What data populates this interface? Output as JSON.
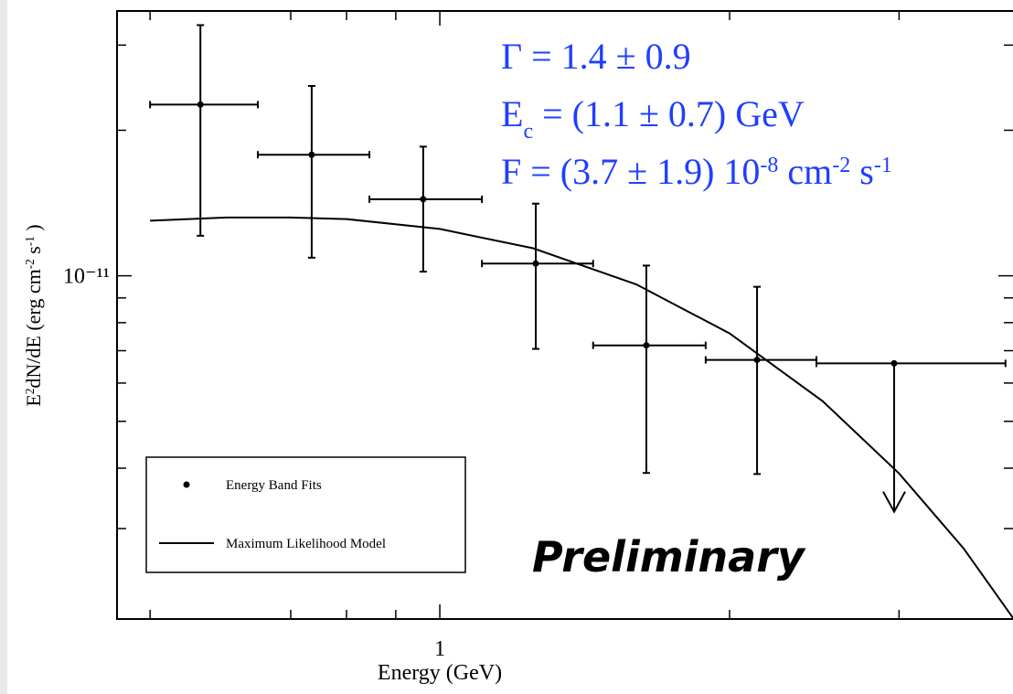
{
  "chart_data": {
    "type": "scatter",
    "log_x": true,
    "log_y": true,
    "xlabel": "Energy (GeV)",
    "ylabel": [
      {
        "text": "E"
      },
      {
        "text": "2",
        "shift": "super"
      },
      {
        "text": "dN/dE (erg cm"
      },
      {
        "text": "-2",
        "shift": "super"
      },
      {
        "text": " s"
      },
      {
        "text": "-1",
        "shift": "super"
      },
      {
        "text": " )"
      }
    ],
    "xlim": [
      0.462,
      3.94
    ],
    "ylim": [
      1.95e-12,
      3.53e-11
    ],
    "xticks": [
      1
    ],
    "xminor_ticks": [
      0.5,
      0.7,
      0.8,
      0.9,
      2,
      3
    ],
    "yticks": [
      {
        "value": 1e-11,
        "label": "10⁻¹¹"
      }
    ],
    "yminor_ticks": [
      3e-12,
      4e-12,
      5e-12,
      6e-12,
      7e-12,
      8e-12,
      9e-12,
      2e-11,
      3e-11
    ],
    "series": [
      {
        "name": "Energy Band Fits",
        "type": "errorbar",
        "color": "#000000",
        "x": [
          0.564,
          0.736,
          0.961,
          1.258,
          1.639,
          2.136,
          2.965
        ],
        "values": [
          2.26e-11,
          1.78e-11,
          1.44e-11,
          1.06e-11,
          7.18e-12,
          6.7e-12,
          6.59e-12
        ],
        "x_low": [
          0.5,
          0.647,
          0.845,
          1.106,
          1.443,
          1.889,
          2.462
        ],
        "x_high": [
          0.647,
          0.845,
          1.106,
          1.443,
          1.889,
          2.462,
          3.87
        ],
        "y_low": [
          1.21e-11,
          1.09e-11,
          1.02e-11,
          7.06e-12,
          3.91e-12,
          3.89e-12,
          3.25e-12
        ],
        "y_high": [
          3.3e-11,
          2.47e-11,
          1.85e-11,
          1.41e-11,
          1.05e-11,
          9.49e-12,
          null
        ],
        "upper_limit": [
          false,
          false,
          false,
          false,
          false,
          false,
          true
        ]
      },
      {
        "name": "Maximum Likelihood Model",
        "type": "line",
        "color": "#000000",
        "x": [
          0.5,
          0.6,
          0.7,
          0.8,
          1.0,
          1.25,
          1.6,
          2.0,
          2.5,
          3.0,
          3.5,
          3.94
        ],
        "values": [
          1.3e-11,
          1.32e-11,
          1.32e-11,
          1.31e-11,
          1.25e-11,
          1.14e-11,
          9.6e-12,
          7.6e-12,
          5.5e-12,
          3.9e-12,
          2.73e-12,
          1.96e-12
        ]
      }
    ],
    "annotations": [
      [
        {
          "text": "Γ = 1.4 ± 0.9"
        }
      ],
      [
        {
          "text": "E"
        },
        {
          "text": "c",
          "shift": "sub"
        },
        {
          "text": " = (1.1 ± 0.7) GeV"
        }
      ],
      [
        {
          "text": "F = (3.7 ± 1.9) 10"
        },
        {
          "text": "-8",
          "shift": "super"
        },
        {
          "text": " cm"
        },
        {
          "text": "-2",
          "shift": "super"
        },
        {
          "text": " s"
        },
        {
          "text": "-1",
          "shift": "super"
        }
      ]
    ],
    "annotation_color": "#1f3fff",
    "watermark": "Preliminary",
    "watermark_color": "#ff3300"
  }
}
